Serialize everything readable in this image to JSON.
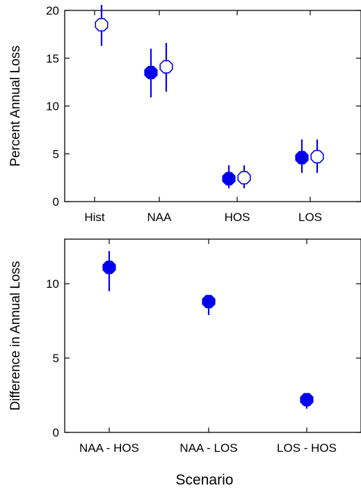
{
  "colors": {
    "series": "#0000ee",
    "axis": "#000000",
    "background": "#ffffff"
  },
  "figure": {
    "xlabel": "Scenario"
  },
  "chart_data": [
    {
      "type": "scatter",
      "title": "",
      "xlabel": "",
      "ylabel": "Percent Annual Loss",
      "ylim": [
        0,
        20
      ],
      "yticks": [
        0,
        5,
        10,
        15,
        20
      ],
      "categories": [
        "Hist",
        "NAA",
        "HOS",
        "LOS"
      ],
      "grid": false,
      "series": [
        {
          "marker": "filled-octagon",
          "points": [
            {
              "category": "NAA",
              "y": 13.5,
              "low": 10.9,
              "high": 16.0
            },
            {
              "category": "HOS",
              "y": 2.4,
              "low": 1.4,
              "high": 3.8
            },
            {
              "category": "LOS",
              "y": 4.6,
              "low": 3.0,
              "high": 6.5
            }
          ]
        },
        {
          "marker": "open-octagon",
          "points": [
            {
              "category": "Hist",
              "y": 18.5,
              "low": 16.3,
              "high": 20.6
            },
            {
              "category": "NAA",
              "y": 14.1,
              "low": 11.5,
              "high": 16.6
            },
            {
              "category": "HOS",
              "y": 2.5,
              "low": 1.4,
              "high": 3.8
            },
            {
              "category": "LOS",
              "y": 4.7,
              "low": 3.0,
              "high": 6.5
            }
          ]
        }
      ]
    },
    {
      "type": "scatter",
      "title": "",
      "xlabel": "Scenario",
      "ylabel": "Difference in Annual Loss",
      "ylim": [
        0,
        13
      ],
      "yticks": [
        0,
        5,
        10
      ],
      "categories": [
        "NAA - HOS",
        "NAA - LOS",
        "LOS - HOS"
      ],
      "grid": false,
      "series": [
        {
          "marker": "filled-octagon",
          "points": [
            {
              "category": "NAA - HOS",
              "y": 11.1,
              "low": 9.5,
              "high": 12.2
            },
            {
              "category": "NAA - LOS",
              "y": 8.8,
              "low": 7.9,
              "high": 9.2
            },
            {
              "category": "LOS - HOS",
              "y": 2.2,
              "low": 1.6,
              "high": 2.4
            }
          ]
        }
      ]
    }
  ]
}
